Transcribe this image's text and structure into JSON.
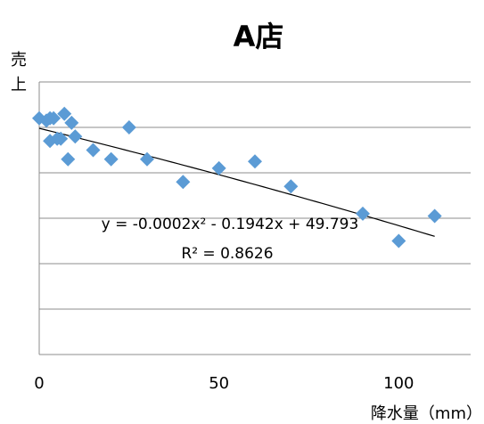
{
  "chart_data": {
    "type": "scatter",
    "title": "A店",
    "xlabel": "降水量（mm）",
    "ylabel": "売上",
    "xlim": [
      0,
      120
    ],
    "ylim": [
      0,
      60
    ],
    "x_ticks": [
      "0",
      "50",
      "100"
    ],
    "grid": "horizontal",
    "series": [
      {
        "color": "#5b9bd5",
        "marker": "diamond",
        "points": [
          [
            0,
            52
          ],
          [
            2,
            51.5
          ],
          [
            3,
            52
          ],
          [
            3,
            47
          ],
          [
            4,
            52
          ],
          [
            5,
            47.5
          ],
          [
            6,
            47.5
          ],
          [
            7,
            53
          ],
          [
            8,
            43
          ],
          [
            9,
            51
          ],
          [
            10,
            48
          ],
          [
            15,
            45
          ],
          [
            20,
            43
          ],
          [
            25,
            50
          ],
          [
            30,
            43
          ],
          [
            40,
            38
          ],
          [
            50,
            41
          ],
          [
            60,
            42.5
          ],
          [
            70,
            37
          ],
          [
            90,
            31
          ],
          [
            100,
            25
          ],
          [
            110,
            30.5
          ]
        ]
      }
    ],
    "trendline": {
      "type": "polynomial",
      "coefficients": [
        -0.0002,
        -0.1942,
        49.793
      ],
      "x_range": [
        0,
        110
      ],
      "equation_text": "y = -0.0002x² - 0.1942x + 49.793",
      "r2_text": "R² = 0.8626"
    }
  }
}
